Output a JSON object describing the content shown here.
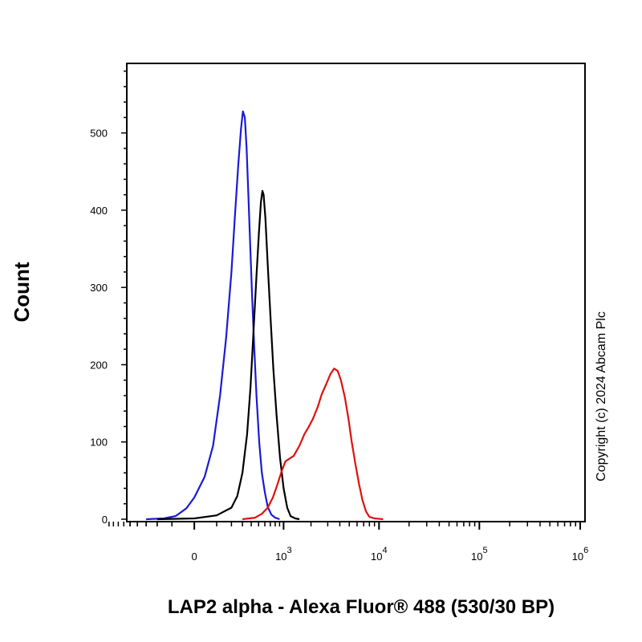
{
  "chart_data": {
    "type": "line",
    "title": "",
    "xlabel": "LAP2 alpha - Alexa Fluor® 488 (530/30 BP)",
    "ylabel": "Count",
    "x_scale": "biexponential",
    "ylim": [
      0,
      590
    ],
    "grid": false,
    "legend": "none",
    "x_ticks": [
      {
        "value": 0,
        "label": "0"
      },
      {
        "value": 1000,
        "base": "10",
        "exp": "3"
      },
      {
        "value": 10000,
        "base": "10",
        "exp": "4"
      },
      {
        "value": 100000,
        "base": "10",
        "exp": "5"
      },
      {
        "value": 1000000,
        "base": "10",
        "exp": "6"
      }
    ],
    "y_ticks": [
      0,
      100,
      200,
      300,
      400,
      500
    ],
    "series": [
      {
        "color": "#1a1ad6",
        "points": [
          [
            -300,
            0
          ],
          [
            -150,
            1
          ],
          [
            -80,
            4
          ],
          [
            -30,
            14
          ],
          [
            0,
            28
          ],
          [
            40,
            55
          ],
          [
            80,
            95
          ],
          [
            120,
            160
          ],
          [
            160,
            235
          ],
          [
            200,
            320
          ],
          [
            230,
            395
          ],
          [
            260,
            460
          ],
          [
            285,
            505
          ],
          [
            305,
            528
          ],
          [
            325,
            520
          ],
          [
            345,
            480
          ],
          [
            365,
            420
          ],
          [
            385,
            360
          ],
          [
            410,
            290
          ],
          [
            440,
            220
          ],
          [
            470,
            160
          ],
          [
            510,
            100
          ],
          [
            550,
            60
          ],
          [
            600,
            35
          ],
          [
            650,
            16
          ],
          [
            720,
            6
          ],
          [
            800,
            2
          ],
          [
            900,
            0
          ]
        ]
      },
      {
        "color": "#000000",
        "points": [
          [
            -200,
            0
          ],
          [
            0,
            1
          ],
          [
            100,
            5
          ],
          [
            200,
            15
          ],
          [
            250,
            30
          ],
          [
            300,
            60
          ],
          [
            350,
            110
          ],
          [
            390,
            170
          ],
          [
            430,
            245
          ],
          [
            470,
            315
          ],
          [
            505,
            370
          ],
          [
            535,
            410
          ],
          [
            560,
            425
          ],
          [
            580,
            420
          ],
          [
            610,
            390
          ],
          [
            650,
            330
          ],
          [
            700,
            265
          ],
          [
            760,
            195
          ],
          [
            830,
            135
          ],
          [
            910,
            80
          ],
          [
            1000,
            40
          ],
          [
            1100,
            15
          ],
          [
            1200,
            4
          ],
          [
            1350,
            1
          ],
          [
            1500,
            0
          ]
        ]
      },
      {
        "color": "#e01010",
        "points": [
          [
            300,
            0
          ],
          [
            450,
            2
          ],
          [
            550,
            7
          ],
          [
            650,
            15
          ],
          [
            750,
            28
          ],
          [
            850,
            45
          ],
          [
            950,
            62
          ],
          [
            1050,
            75
          ],
          [
            1150,
            78
          ],
          [
            1300,
            82
          ],
          [
            1500,
            95
          ],
          [
            1700,
            110
          ],
          [
            1900,
            120
          ],
          [
            2100,
            130
          ],
          [
            2350,
            145
          ],
          [
            2600,
            162
          ],
          [
            2900,
            175
          ],
          [
            3200,
            188
          ],
          [
            3500,
            195
          ],
          [
            3800,
            192
          ],
          [
            4100,
            180
          ],
          [
            4500,
            158
          ],
          [
            4900,
            130
          ],
          [
            5300,
            100
          ],
          [
            5800,
            70
          ],
          [
            6300,
            45
          ],
          [
            6800,
            25
          ],
          [
            7400,
            10
          ],
          [
            8000,
            3
          ],
          [
            9000,
            1
          ],
          [
            11000,
            0
          ]
        ]
      }
    ]
  },
  "copyright": "Copyright (c) 2024 Abcam Plc"
}
